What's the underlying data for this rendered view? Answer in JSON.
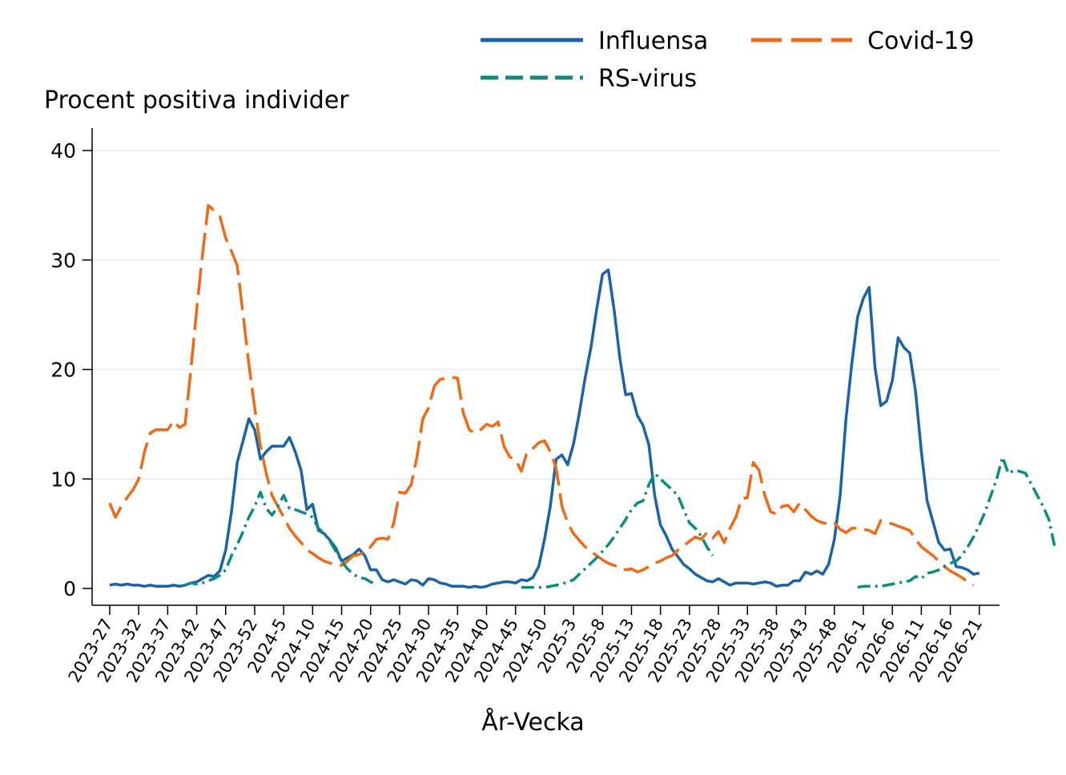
{
  "chart_data": {
    "type": "line",
    "ylabel": "Procent positiva individer",
    "xlabel": "År-Vecka",
    "ylim": [
      0,
      40
    ],
    "yticks": [
      0,
      10,
      20,
      30,
      40
    ],
    "grid": "horizontal",
    "legend_position": "top-right",
    "x_start_index": 0,
    "x_end_index": 151,
    "xticks": [
      {
        "index": 0,
        "label": "2023-27"
      },
      {
        "index": 5,
        "label": "2023-32"
      },
      {
        "index": 10,
        "label": "2023-37"
      },
      {
        "index": 15,
        "label": "2023-42"
      },
      {
        "index": 20,
        "label": "2023-47"
      },
      {
        "index": 25,
        "label": "2023-52"
      },
      {
        "index": 30,
        "label": "2024-5"
      },
      {
        "index": 35,
        "label": "2024-10"
      },
      {
        "index": 40,
        "label": "2024-15"
      },
      {
        "index": 45,
        "label": "2024-20"
      },
      {
        "index": 50,
        "label": "2024-25"
      },
      {
        "index": 55,
        "label": "2024-30"
      },
      {
        "index": 60,
        "label": "2024-35"
      },
      {
        "index": 65,
        "label": "2024-40"
      },
      {
        "index": 70,
        "label": "2024-45"
      },
      {
        "index": 75,
        "label": "2024-50"
      },
      {
        "index": 80,
        "label": "2025-3"
      },
      {
        "index": 85,
        "label": "2025-8"
      },
      {
        "index": 90,
        "label": "2025-13"
      },
      {
        "index": 95,
        "label": "2025-18"
      },
      {
        "index": 100,
        "label": "2025-23"
      },
      {
        "index": 105,
        "label": "2025-28"
      },
      {
        "index": 110,
        "label": "2025-33"
      },
      {
        "index": 115,
        "label": "2025-38"
      },
      {
        "index": 120,
        "label": "2025-43"
      },
      {
        "index": 125,
        "label": "2025-48"
      },
      {
        "index": 130,
        "label": "2026-1"
      },
      {
        "index": 135,
        "label": "2026-6"
      },
      {
        "index": 140,
        "label": "2026-11"
      },
      {
        "index": 145,
        "label": "2026-16"
      },
      {
        "index": 150,
        "label": "2026-21"
      }
    ],
    "series": [
      {
        "name": "Influensa",
        "color": "#1a63a8",
        "dash": "solid",
        "start_index": 0,
        "values": [
          0.3,
          0.4,
          0.3,
          0.4,
          0.3,
          0.3,
          0.2,
          0.3,
          0.2,
          0.2,
          0.2,
          0.3,
          0.2,
          0.3,
          0.5,
          0.6,
          0.9,
          1.2,
          1.1,
          1.6,
          3.5,
          7.0,
          11.5,
          13.5,
          15.5,
          14.5,
          11.8,
          12.5,
          13.0,
          13.0,
          13.0,
          13.8,
          12.5,
          10.8,
          7.2,
          7.7,
          5.3,
          5.0,
          4.4,
          3.7,
          2.5,
          2.8,
          3.1,
          3.6,
          3.0,
          1.7,
          1.7,
          0.8,
          0.6,
          0.8,
          0.6,
          0.4,
          0.8,
          0.7,
          0.3,
          0.9,
          0.8,
          0.5,
          0.4,
          0.2,
          0.2,
          0.2,
          0.1,
          0.2,
          0.1,
          0.2,
          0.4,
          0.5,
          0.6,
          0.6,
          0.5,
          0.8,
          0.7,
          1.0,
          2.0,
          4.5,
          7.5,
          11.8,
          12.2,
          11.3,
          13.2,
          16.0,
          19.2,
          22.0,
          25.5,
          28.7,
          29.1,
          25.5,
          21.0,
          17.7,
          17.8,
          15.8,
          14.9,
          13.1,
          8.5,
          5.8,
          4.8,
          3.6,
          2.9,
          2.2,
          1.8,
          1.3,
          1.0,
          0.7,
          0.6,
          0.9,
          0.6,
          0.3,
          0.5,
          0.5,
          0.5,
          0.4,
          0.5,
          0.6,
          0.5,
          0.2,
          0.3,
          0.3,
          0.7,
          0.7,
          1.5,
          1.3,
          1.6,
          1.3,
          2.2,
          4.5,
          8.5,
          15.5,
          20.5,
          24.8,
          26.5,
          27.5,
          20.2,
          16.7,
          17.1,
          19.0,
          22.9,
          22.0,
          21.5,
          18.0,
          12.5,
          8.0,
          6.1,
          4.2,
          3.5,
          3.6,
          2.0,
          1.9,
          1.7,
          1.3,
          1.4
        ]
      },
      {
        "name": "Covid-19",
        "color": "#ee6a16",
        "dash": "long-dash",
        "start_index": 0,
        "values": [
          7.8,
          6.5,
          7.5,
          8.3,
          9.0,
          10.0,
          12.5,
          14.2,
          14.5,
          14.5,
          14.5,
          15.3,
          14.7,
          15.0,
          20.0,
          25.5,
          30.5,
          35.0,
          34.5,
          34.0,
          32.0,
          30.8,
          29.5,
          25.0,
          20.5,
          16.5,
          13.0,
          10.5,
          8.5,
          7.5,
          6.5,
          5.5,
          4.8,
          4.2,
          3.5,
          3.2,
          2.8,
          2.5,
          2.3,
          2.3,
          2.1,
          2.5,
          3.0,
          3.1,
          3.3,
          3.8,
          4.5,
          4.6,
          4.5,
          6.0,
          8.8,
          8.7,
          9.5,
          12.0,
          15.5,
          16.5,
          18.5,
          19.1,
          19.2,
          19.3,
          19.2,
          16.0,
          14.5,
          14.2,
          14.5,
          15.0,
          14.8,
          15.2,
          13.0,
          12.0,
          11.8,
          10.7,
          12.5,
          12.8,
          13.3,
          13.5,
          12.5,
          11.0,
          7.5,
          6.0,
          5.0,
          4.4,
          3.8,
          3.4,
          3.0,
          2.6,
          2.3,
          2.1,
          2.0,
          1.7,
          1.8,
          1.5,
          1.7,
          2.0,
          2.3,
          2.5,
          2.8,
          3.0,
          3.5,
          3.9,
          4.3,
          4.7,
          4.5,
          5.1,
          4.6,
          5.2,
          4.2,
          5.5,
          6.5,
          8.2,
          8.3,
          11.5,
          10.8,
          8.5,
          7.0,
          6.8,
          7.5,
          7.6,
          7.0,
          7.8,
          7.2,
          6.6,
          6.2,
          6.0,
          5.9,
          6.0,
          5.4,
          5.1,
          5.5,
          5.5,
          5.4,
          5.3,
          5.0,
          6.2,
          6.0,
          5.9,
          5.7,
          5.5,
          5.3,
          4.5,
          3.8,
          3.4,
          3.0,
          2.5,
          2.0,
          1.6,
          1.3,
          1.0,
          0.6,
          0.3
        ]
      },
      {
        "name": "RS-virus",
        "color": "#0a8c80",
        "dash": "dash-dot",
        "start_index": 13,
        "values": [
          0.3,
          0.5,
          0.4,
          0.5,
          0.7,
          0.9,
          1.2,
          1.7,
          3.0,
          4.0,
          5.2,
          6.5,
          7.5,
          8.8,
          7.3,
          6.7,
          7.5,
          8.5,
          7.3,
          7.2,
          7.0,
          6.8,
          6.5,
          5.5,
          5.0,
          4.3,
          3.4,
          2.5,
          1.8,
          1.3,
          1.0,
          0.9,
          0.6,
          0.4,
          null,
          null,
          null,
          null,
          null,
          null,
          null,
          null,
          null,
          null,
          null,
          null,
          null,
          null,
          null,
          null,
          null,
          null,
          null,
          null,
          null,
          null,
          null,
          null,
          0.1,
          0.1,
          0.1,
          0.1,
          0.1,
          0.2,
          0.3,
          0.4,
          0.6,
          0.8,
          1.3,
          1.8,
          2.3,
          2.8,
          3.4,
          4.0,
          4.7,
          5.5,
          6.3,
          7.2,
          7.8,
          8.0,
          9.5,
          10.5,
          10.0,
          9.5,
          9.0,
          8.5,
          7.2,
          6.0,
          5.5,
          4.8,
          3.8,
          3.0,
          null,
          null,
          null,
          null,
          null,
          null,
          null,
          null,
          null,
          null,
          null,
          null,
          null,
          null,
          null,
          null,
          null,
          null,
          null,
          null,
          null,
          null,
          null,
          null,
          0.1,
          0.2,
          0.2,
          0.2,
          0.2,
          0.3,
          0.4,
          0.5,
          0.6,
          0.7,
          1.1,
          0.9,
          1.4,
          1.5,
          1.7,
          2.0,
          2.3,
          2.5,
          3.0,
          3.8,
          4.7,
          5.8,
          7.0,
          8.5,
          10.0,
          12.0,
          10.5,
          10.8,
          10.7,
          10.5,
          9.5,
          8.5,
          7.5,
          6.3,
          3.8
        ]
      }
    ]
  }
}
